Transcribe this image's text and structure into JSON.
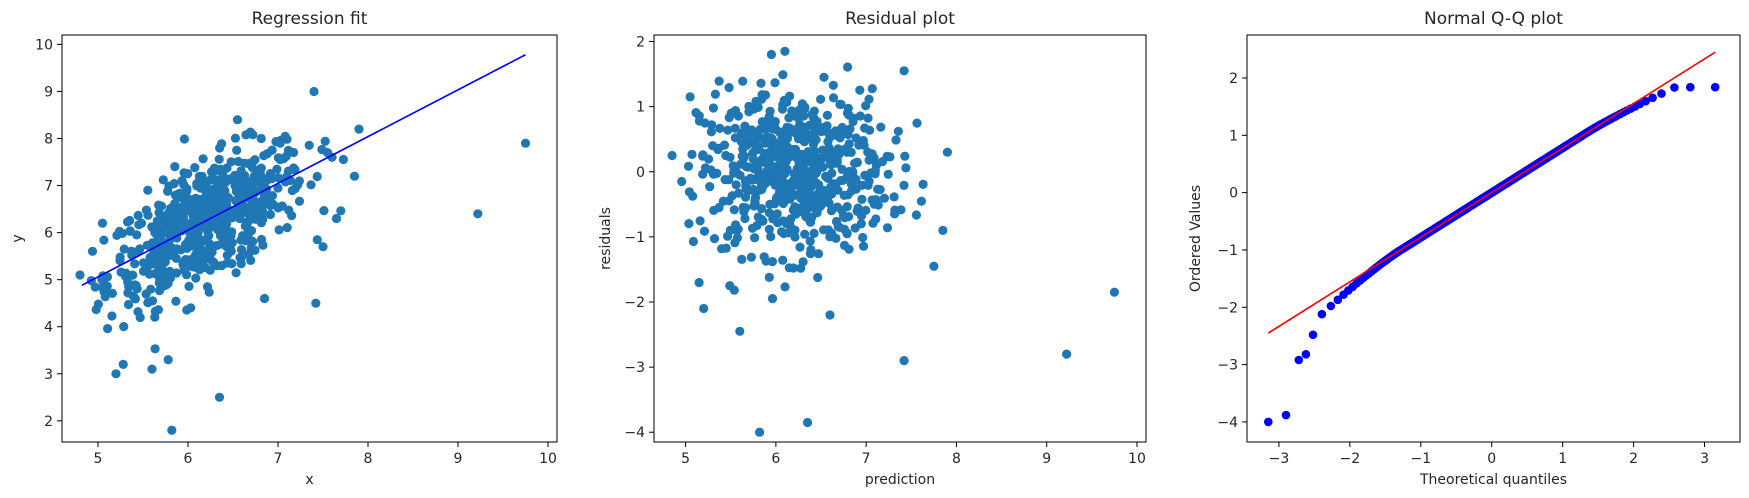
{
  "chart_data": [
    {
      "type": "scatter",
      "title": "Regression fit",
      "xlabel": "x",
      "ylabel": "y",
      "xlim": [
        4.6,
        10.1
      ],
      "ylim": [
        1.55,
        10.2
      ],
      "xticks": [
        "5",
        "6",
        "7",
        "8",
        "9",
        "10"
      ],
      "yticks": [
        "2",
        "3",
        "4",
        "5",
        "6",
        "7",
        "8",
        "9",
        "10"
      ],
      "grid": false,
      "series": [
        {
          "kind": "points",
          "color": "#1f77b4",
          "x": [
            9.22,
            9.75,
            7.4,
            7.42,
            6.35,
            5.82,
            5.2,
            5.28,
            5.6,
            5.78,
            4.8,
            5.05,
            7.9,
            7.85,
            7.65,
            7.55,
            6.55,
            6.85,
            7.5,
            7.6
          ],
          "y": [
            6.4,
            7.9,
            9.0,
            4.5,
            2.5,
            1.8,
            3.0,
            3.2,
            3.1,
            3.3,
            5.1,
            6.2,
            8.2,
            7.2,
            6.3,
            7.7,
            8.4,
            4.6,
            5.7,
            7.6
          ]
        },
        {
          "kind": "line",
          "color": "#0000ff",
          "x": [
            4.82,
            9.75
          ],
          "y": [
            4.88,
            9.78
          ]
        }
      ]
    },
    {
      "type": "scatter",
      "title": "Residual plot",
      "xlabel": "prediction",
      "ylabel": "residuals",
      "xlim": [
        4.65,
        10.1
      ],
      "ylim": [
        -4.15,
        2.1
      ],
      "xticks": [
        "5",
        "6",
        "7",
        "8",
        "9",
        "10"
      ],
      "yticks": [
        "-4",
        "-3",
        "-2",
        "-1",
        "0",
        "1",
        "2"
      ],
      "grid": false,
      "series": [
        {
          "kind": "points",
          "color": "#1f77b4",
          "x": [
            9.22,
            9.75,
            7.42,
            6.35,
            5.82,
            4.85,
            5.05,
            7.9,
            7.85,
            7.42,
            5.2,
            5.6,
            7.75,
            6.6,
            5.95,
            6.1,
            5.15,
            5.3
          ],
          "y": [
            -2.8,
            -1.85,
            -2.9,
            -3.85,
            -4.0,
            0.25,
            1.15,
            0.3,
            -0.9,
            1.55,
            -2.1,
            -2.45,
            -1.45,
            -2.2,
            1.8,
            1.85,
            -1.7,
            0.4
          ]
        }
      ]
    },
    {
      "type": "scatter",
      "title": "Normal Q-Q plot",
      "xlabel": "Theoretical quantiles",
      "ylabel": "Ordered Values",
      "xlim": [
        -3.45,
        3.5
      ],
      "ylim": [
        -4.35,
        2.75
      ],
      "xticks": [
        "-3",
        "-2",
        "-1",
        "0",
        "1",
        "2",
        "3"
      ],
      "yticks": [
        "-4",
        "-3",
        "-2",
        "-1",
        "0",
        "1",
        "2"
      ],
      "grid": false,
      "series": [
        {
          "kind": "points",
          "color": "#0000ff",
          "x": [
            -3.15,
            -2.9,
            -2.72,
            -2.62,
            -2.52,
            2.8,
            3.15
          ],
          "y": [
            -4.0,
            -3.88,
            -2.92,
            -2.82,
            -2.48,
            1.84,
            1.84
          ]
        },
        {
          "kind": "line",
          "color": "#ff0000",
          "x": [
            -3.15,
            3.15
          ],
          "y": [
            -2.45,
            2.45
          ]
        }
      ]
    }
  ]
}
